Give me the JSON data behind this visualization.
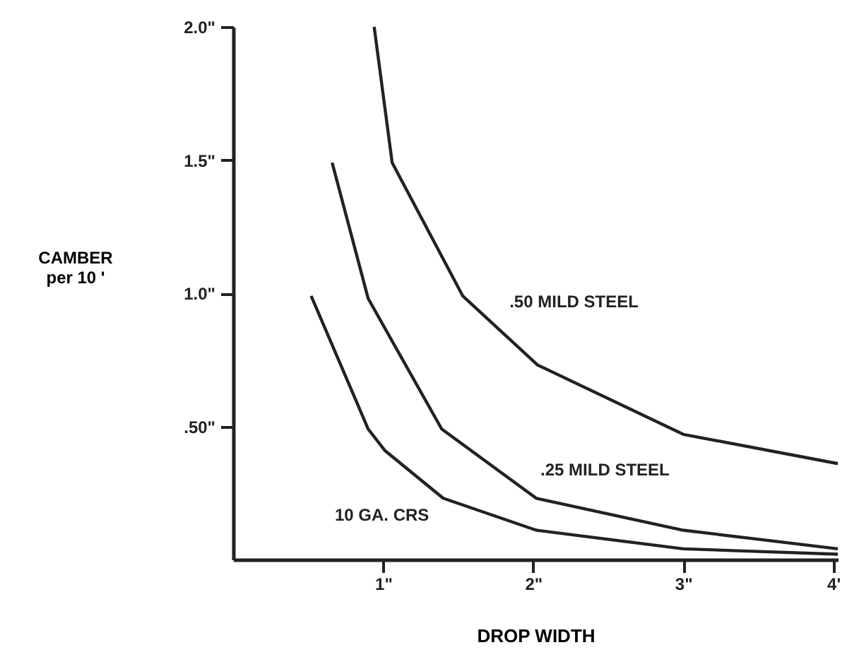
{
  "chart_data": {
    "type": "line",
    "xlabel": "DROP WIDTH",
    "ylabel": "CAMBER\nper 10 '",
    "xlim": [
      0,
      4.03
    ],
    "ylim": [
      0,
      2.0
    ],
    "xticks": [
      {
        "value": 1,
        "label": "1\""
      },
      {
        "value": 2,
        "label": "2\""
      },
      {
        "value": 3,
        "label": "3\""
      },
      {
        "value": 4,
        "label": "4'"
      }
    ],
    "yticks": [
      {
        "value": 0.5,
        "label": ".50\""
      },
      {
        "value": 1.0,
        "label": "1.0\""
      },
      {
        "value": 1.5,
        "label": "1.5\""
      },
      {
        "value": 2.0,
        "label": "2.0\""
      }
    ],
    "grid": false,
    "marker": "none",
    "line_style": "solid",
    "series": [
      {
        "name": ".50 MILD STEEL",
        "color": "#222222",
        "x": [
          0.94,
          1.06,
          1.53,
          2.03,
          3.0,
          4.03
        ],
        "values": [
          2.0,
          1.49,
          0.99,
          0.73,
          0.47,
          0.36
        ]
      },
      {
        "name": ".25 MILD STEEL",
        "color": "#222222",
        "x": [
          0.66,
          0.9,
          1.39,
          2.02,
          3.0,
          4.03
        ],
        "values": [
          1.49,
          0.98,
          0.49,
          0.23,
          0.11,
          0.04
        ]
      },
      {
        "name": "10 GA. CRS",
        "color": "#222222",
        "x": [
          0.52,
          0.9,
          1.01,
          1.4,
          2.02,
          3.0,
          4.03
        ],
        "values": [
          0.99,
          0.49,
          0.41,
          0.23,
          0.11,
          0.04,
          0.02
        ]
      }
    ]
  }
}
